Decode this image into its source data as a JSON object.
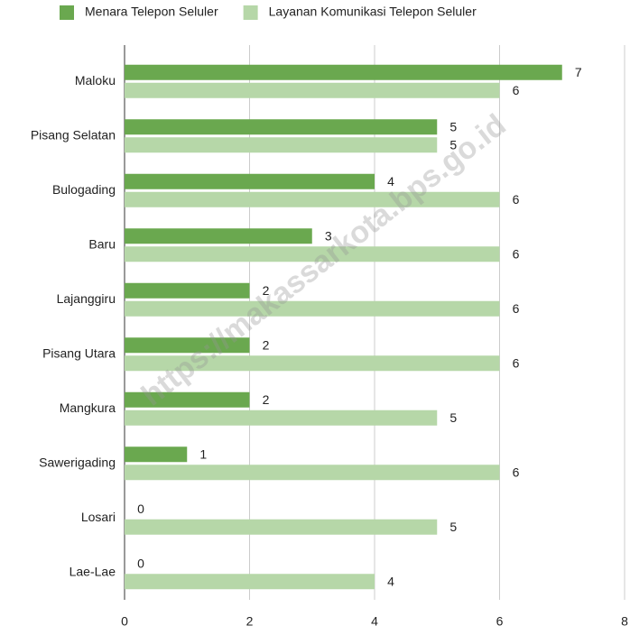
{
  "chart_data": {
    "type": "hbar",
    "categories": [
      "Maloku",
      "Pisang Selatan",
      "Bulogading",
      "Baru",
      "Lajanggiru",
      "Pisang Utara",
      "Mangkura",
      "Sawerigading",
      "Losari",
      "Lae-Lae"
    ],
    "series": [
      {
        "name": "Menara Telepon Seluler",
        "color": "#6aa84f",
        "values": [
          7,
          5,
          4,
          3,
          2,
          2,
          2,
          1,
          0,
          0
        ]
      },
      {
        "name": "Layanan Komunikasi Telepon Seluler",
        "color": "#b6d7a8",
        "values": [
          6,
          5,
          6,
          6,
          6,
          6,
          5,
          6,
          5,
          4
        ]
      }
    ],
    "xlim": [
      0,
      8
    ],
    "xticks": [
      0,
      2,
      4,
      6,
      8
    ],
    "grid": true,
    "legend": "top",
    "watermark": "https://makassarkota.bps.go.id"
  }
}
